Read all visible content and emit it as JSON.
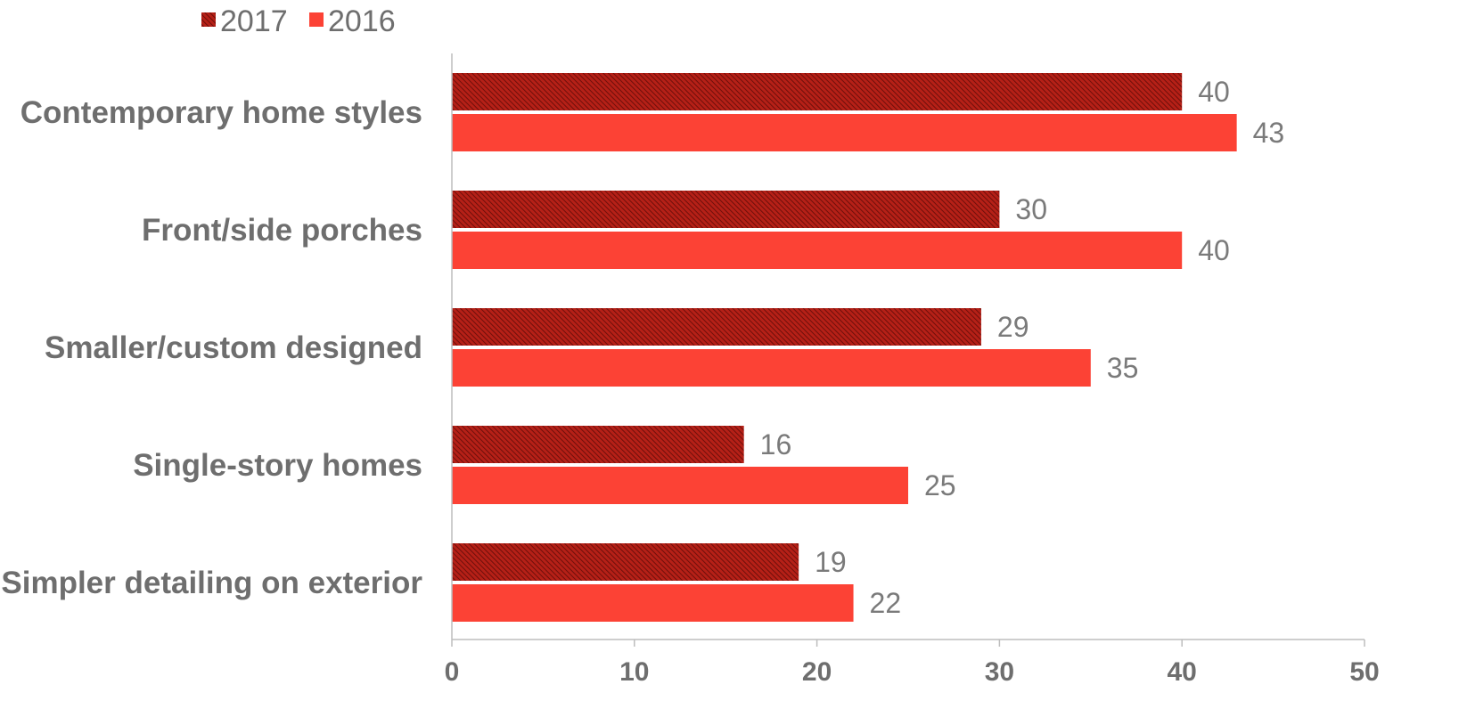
{
  "chart_data": {
    "type": "bar",
    "orientation": "horizontal",
    "categories": [
      "Contemporary home styles",
      "Front/side porches",
      "Smaller/custom designed",
      "Single-story homes",
      "Simpler detailing on exterior"
    ],
    "series": [
      {
        "name": "2017",
        "values": [
          40,
          30,
          29,
          16,
          19
        ],
        "color": "#9b1b14",
        "pattern": "hatched"
      },
      {
        "name": "2016",
        "values": [
          43,
          40,
          35,
          25,
          22
        ],
        "color": "#fc4235"
      }
    ],
    "xlim": [
      0,
      50
    ],
    "xticks": [
      0,
      10,
      20,
      30,
      40,
      50
    ],
    "grid": false,
    "legend": "top-left",
    "data_labels": true
  }
}
